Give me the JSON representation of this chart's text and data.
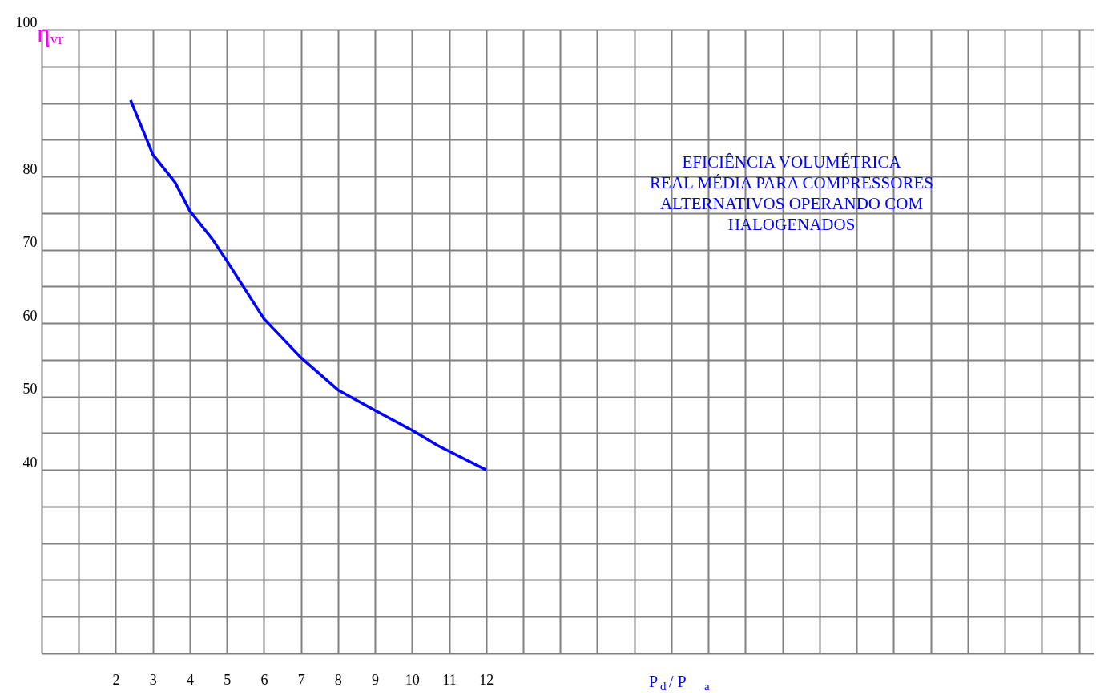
{
  "chart_data": {
    "type": "line",
    "title": "EFICIÊNCIA VOLUMÉTRICA\nREAL MÉDIA PARA COMPRESSORES\nALTERNATIVOS OPERANDO COM\nHALOGENADOS",
    "xlabel": "P$_{d}$ / P$_{a}$",
    "ylabel": "ηᵥᵣ",
    "series": [
      {
        "color": "#0000ff",
        "x": [
          2.4,
          3.0,
          3.6,
          4.0,
          4.6,
          5.0,
          6.0,
          7.0,
          8.0,
          9.0,
          10.0,
          10.7,
          12.0
        ],
        "values": [
          90.4,
          83.0,
          79.2,
          75.3,
          71.5,
          68.5,
          60.6,
          55.3,
          50.9,
          48.1,
          45.4,
          43.3,
          40.0
        ]
      }
    ],
    "xlim": [
      0,
      28.4
    ],
    "ylim": [
      15,
      100
    ],
    "xticks": [
      {
        "value": 0,
        "label": null
      },
      {
        "value": 1,
        "label": null
      },
      2,
      3,
      4,
      5,
      6,
      7,
      8,
      9,
      10,
      11,
      12,
      {
        "value": 13,
        "label": null
      },
      {
        "value": 14,
        "label": null
      },
      {
        "value": 15,
        "label": null
      },
      {
        "value": 16,
        "label": null
      },
      {
        "value": 17,
        "label": null
      },
      {
        "value": 18,
        "label": null
      },
      {
        "value": 19,
        "label": null
      },
      {
        "value": 20,
        "label": null
      },
      {
        "value": 21,
        "label": null
      },
      {
        "value": 22,
        "label": null
      },
      {
        "value": 23,
        "label": null
      },
      {
        "value": 24,
        "label": null
      },
      {
        "value": 25,
        "label": null
      },
      {
        "value": 26,
        "label": null
      },
      {
        "value": 27,
        "label": null
      },
      {
        "value": 28,
        "label": null
      }
    ],
    "yticks": [
      {
        "value": 15,
        "label": null
      },
      {
        "value": 20,
        "label": null
      },
      {
        "value": 25,
        "label": null
      },
      {
        "value": 30,
        "label": null
      },
      {
        "value": 35,
        "label": null
      },
      40,
      {
        "value": 45,
        "label": null
      },
      50,
      {
        "value": 55,
        "label": null
      },
      60,
      {
        "value": 65,
        "label": null
      },
      70,
      {
        "value": 75,
        "label": null
      },
      80,
      {
        "value": 85,
        "label": null
      },
      {
        "value": 90,
        "label": null
      },
      {
        "value": 95,
        "label": null
      },
      100
    ],
    "grid": true,
    "line_style": "solid",
    "marker": "none"
  }
}
